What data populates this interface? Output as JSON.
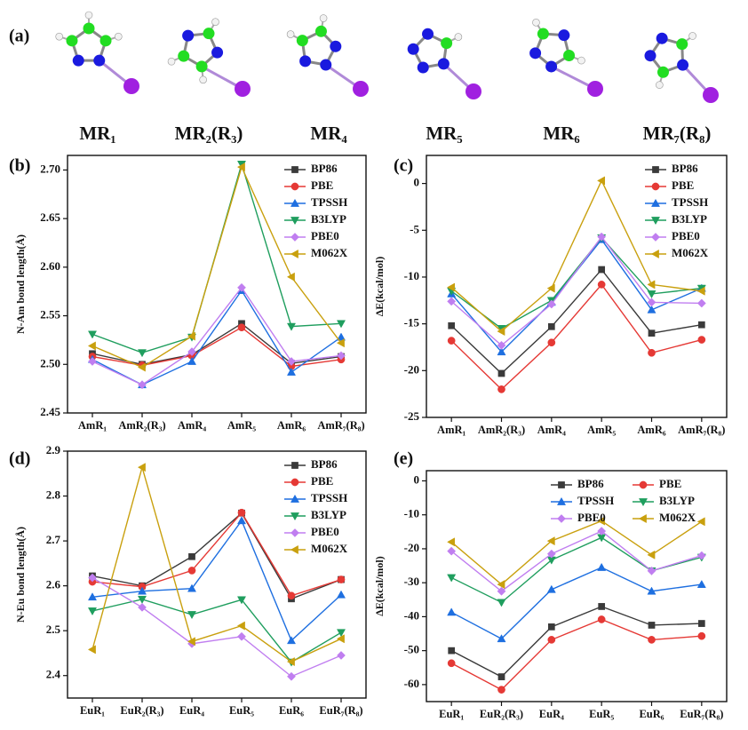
{
  "panel_a": {
    "label": "(a)",
    "molecules": [
      "MR₁",
      "MR₂(R₃)",
      "MR₄",
      "MR₅",
      "MR₆",
      "MR₇(R₈)"
    ]
  },
  "chart_data": [
    {
      "type": "line",
      "panel_label": "(b)",
      "y_label": "N-Am bond length(Å)",
      "categories": [
        "AmR₁",
        "AmR₂(R₃)",
        "AmR₄",
        "AmR₅",
        "AmR₆",
        "AmR₇(R₈)"
      ],
      "ylim": [
        2.45,
        2.715
      ],
      "yticks": [
        2.45,
        {
          "value": 2.5,
          "label": "2.50"
        },
        2.55,
        {
          "value": 2.6,
          "label": "2.60"
        },
        2.65,
        {
          "value": 2.7,
          "label": "2.70"
        }
      ],
      "legend": "upper right",
      "legend_columns": 1,
      "series": [
        {
          "name": "BP86",
          "color": "#3a3a3a",
          "marker": "square",
          "values": [
            2.511,
            2.5,
            2.51,
            2.542,
            2.501,
            2.508
          ]
        },
        {
          "name": "PBE",
          "color": "#e53935",
          "marker": "circle",
          "values": [
            2.508,
            2.499,
            2.509,
            2.538,
            2.498,
            2.505
          ]
        },
        {
          "name": "TPSSH",
          "color": "#1e6fe0",
          "marker": "triangle-up",
          "values": [
            2.505,
            2.479,
            2.503,
            2.576,
            2.492,
            2.528
          ]
        },
        {
          "name": "B3LYP",
          "color": "#1f9e5e",
          "marker": "triangle-down",
          "values": [
            2.531,
            2.512,
            2.528,
            2.706,
            2.539,
            2.542
          ]
        },
        {
          "name": "PBE0",
          "color": "#c07ef0",
          "marker": "diamond",
          "values": [
            2.503,
            2.479,
            2.513,
            2.579,
            2.503,
            2.509
          ]
        },
        {
          "name": "M062X",
          "color": "#c9a00e",
          "marker": "triangle-left",
          "values": [
            2.519,
            2.497,
            2.529,
            2.703,
            2.59,
            2.522
          ]
        }
      ]
    },
    {
      "type": "line",
      "panel_label": "(c)",
      "y_label": "ΔE(kcal/mol)",
      "categories": [
        "AmR₁",
        "AmR₂(R₃)",
        "AmR₄",
        "AmR₅",
        "AmR₆",
        "AmR₇(R₈)"
      ],
      "ylim": [
        -25,
        3
      ],
      "yticks": [
        -25,
        -20,
        -15,
        -10,
        -5,
        0
      ],
      "legend": "upper right",
      "legend_columns": 1,
      "series": [
        {
          "name": "BP86",
          "color": "#3a3a3a",
          "marker": "square",
          "values": [
            -15.2,
            -20.3,
            -15.3,
            -9.2,
            -16.0,
            -15.1
          ]
        },
        {
          "name": "PBE",
          "color": "#e53935",
          "marker": "circle",
          "values": [
            -16.8,
            -22.0,
            -17.0,
            -10.8,
            -18.1,
            -16.7
          ]
        },
        {
          "name": "TPSSH",
          "color": "#1e6fe0",
          "marker": "triangle-up",
          "values": [
            -11.8,
            -18.0,
            -12.7,
            -6.0,
            -13.5,
            -11.2
          ]
        },
        {
          "name": "B3LYP",
          "color": "#1f9e5e",
          "marker": "triangle-down",
          "values": [
            -11.5,
            -15.5,
            -12.5,
            -5.8,
            -11.8,
            -11.2
          ]
        },
        {
          "name": "PBE0",
          "color": "#c07ef0",
          "marker": "diamond",
          "values": [
            -12.6,
            -17.3,
            -12.9,
            -5.7,
            -12.7,
            -12.8
          ]
        },
        {
          "name": "M062X",
          "color": "#c9a00e",
          "marker": "triangle-left",
          "values": [
            -11.1,
            -15.8,
            -11.2,
            0.3,
            -10.8,
            -11.5
          ]
        }
      ]
    },
    {
      "type": "line",
      "panel_label": "(d)",
      "y_label": "N-Eu bond length(Å)",
      "categories": [
        "EuR₁",
        "EuR₂(R₃)",
        "EuR₄",
        "EuR₅",
        "EuR₆",
        "EuR₇(R₈)"
      ],
      "ylim": [
        2.35,
        2.9
      ],
      "yticks": [
        2.4,
        2.5,
        2.6,
        2.7,
        2.8,
        2.9
      ],
      "legend": "upper right",
      "legend_columns": 1,
      "series": [
        {
          "name": "BP86",
          "color": "#3a3a3a",
          "marker": "square",
          "values": [
            2.622,
            2.6,
            2.665,
            2.762,
            2.571,
            2.614
          ]
        },
        {
          "name": "PBE",
          "color": "#e53935",
          "marker": "circle",
          "values": [
            2.609,
            2.598,
            2.634,
            2.763,
            2.578,
            2.614
          ]
        },
        {
          "name": "TPSSH",
          "color": "#1e6fe0",
          "marker": "triangle-up",
          "values": [
            2.575,
            2.588,
            2.594,
            2.745,
            2.478,
            2.58
          ]
        },
        {
          "name": "B3LYP",
          "color": "#1f9e5e",
          "marker": "triangle-down",
          "values": [
            2.544,
            2.57,
            2.536,
            2.569,
            2.43,
            2.496
          ]
        },
        {
          "name": "PBE0",
          "color": "#c07ef0",
          "marker": "diamond",
          "values": [
            2.618,
            2.552,
            2.471,
            2.487,
            2.398,
            2.445
          ]
        },
        {
          "name": "M062X",
          "color": "#c9a00e",
          "marker": "triangle-left",
          "values": [
            2.458,
            2.864,
            2.476,
            2.511,
            2.431,
            2.482
          ]
        }
      ]
    },
    {
      "type": "line",
      "panel_label": "(e)",
      "y_label": "ΔE(kcal/mol)",
      "categories": [
        "EuR₁",
        "EuR₂(R₃)",
        "EuR₄",
        "EuR₅",
        "EuR₆",
        "EuR₇(R₈)"
      ],
      "ylim": [
        -65,
        3
      ],
      "yticks": [
        -60,
        -50,
        -40,
        -30,
        -20,
        -10,
        0
      ],
      "legend": "upper right",
      "legend_columns": 2,
      "series": [
        {
          "name": "BP86",
          "color": "#3a3a3a",
          "marker": "square",
          "values": [
            -50.0,
            -57.7,
            -43.0,
            -37.0,
            -42.5,
            -42.0
          ]
        },
        {
          "name": "PBE",
          "color": "#e53935",
          "marker": "circle",
          "values": [
            -53.7,
            -61.5,
            -46.8,
            -40.8,
            -46.8,
            -45.7
          ]
        },
        {
          "name": "TPSSH",
          "color": "#1e6fe0",
          "marker": "triangle-up",
          "values": [
            -38.7,
            -46.5,
            -32.0,
            -25.5,
            -32.5,
            -30.5
          ]
        },
        {
          "name": "B3LYP",
          "color": "#1f9e5e",
          "marker": "triangle-down",
          "values": [
            -28.5,
            -35.8,
            -23.3,
            -16.7,
            -26.5,
            -22.5
          ]
        },
        {
          "name": "PBE0",
          "color": "#c07ef0",
          "marker": "diamond",
          "values": [
            -20.7,
            -32.5,
            -21.5,
            -14.8,
            -26.5,
            -22.0
          ]
        },
        {
          "name": "M062X",
          "color": "#c9a00e",
          "marker": "triangle-left",
          "values": [
            -18.0,
            -30.5,
            -17.7,
            -11.8,
            -21.8,
            -12.0
          ]
        }
      ]
    }
  ]
}
